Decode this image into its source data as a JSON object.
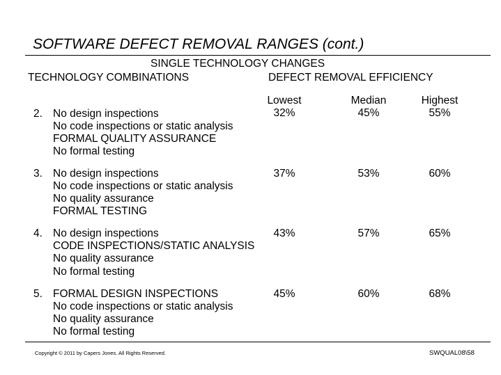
{
  "title": "SOFTWARE DEFECT REMOVAL RANGES (cont.)",
  "subtitle": "SINGLE TECHNOLOGY CHANGES",
  "left_heading": "TECHNOLOGY COMBINATIONS",
  "right_heading": "DEFECT REMOVAL EFFICIENCY",
  "columns": [
    "Lowest",
    "Median",
    "Highest"
  ],
  "rows": [
    {
      "num": "2.",
      "lines": [
        "No design inspections",
        "No code inspections or static analysis",
        "FORMAL QUALITY ASSURANCE",
        "No formal testing"
      ],
      "lowest": "32%",
      "median": "45%",
      "highest": "55%"
    },
    {
      "num": "3.",
      "lines": [
        "No design inspections",
        "No code inspections or static analysis",
        "No quality assurance",
        "FORMAL TESTING"
      ],
      "lowest": "37%",
      "median": "53%",
      "highest": "60%"
    },
    {
      "num": "4.",
      "lines": [
        "No design inspections",
        "CODE INSPECTIONS/STATIC ANALYSIS",
        "No quality assurance",
        "No formal testing"
      ],
      "lowest": "43%",
      "median": "57%",
      "highest": "65%"
    },
    {
      "num": "5.",
      "lines": [
        "FORMAL DESIGN INSPECTIONS",
        "No code inspections or static analysis",
        "No quality assurance",
        "No formal testing"
      ],
      "lowest": "45%",
      "median": "60%",
      "highest": "68%"
    }
  ],
  "footer": {
    "copyright": "Copyright © 2011 by Capers Jones. All Rights Reserved.",
    "slide_id": "SWQUAL08\\58"
  }
}
